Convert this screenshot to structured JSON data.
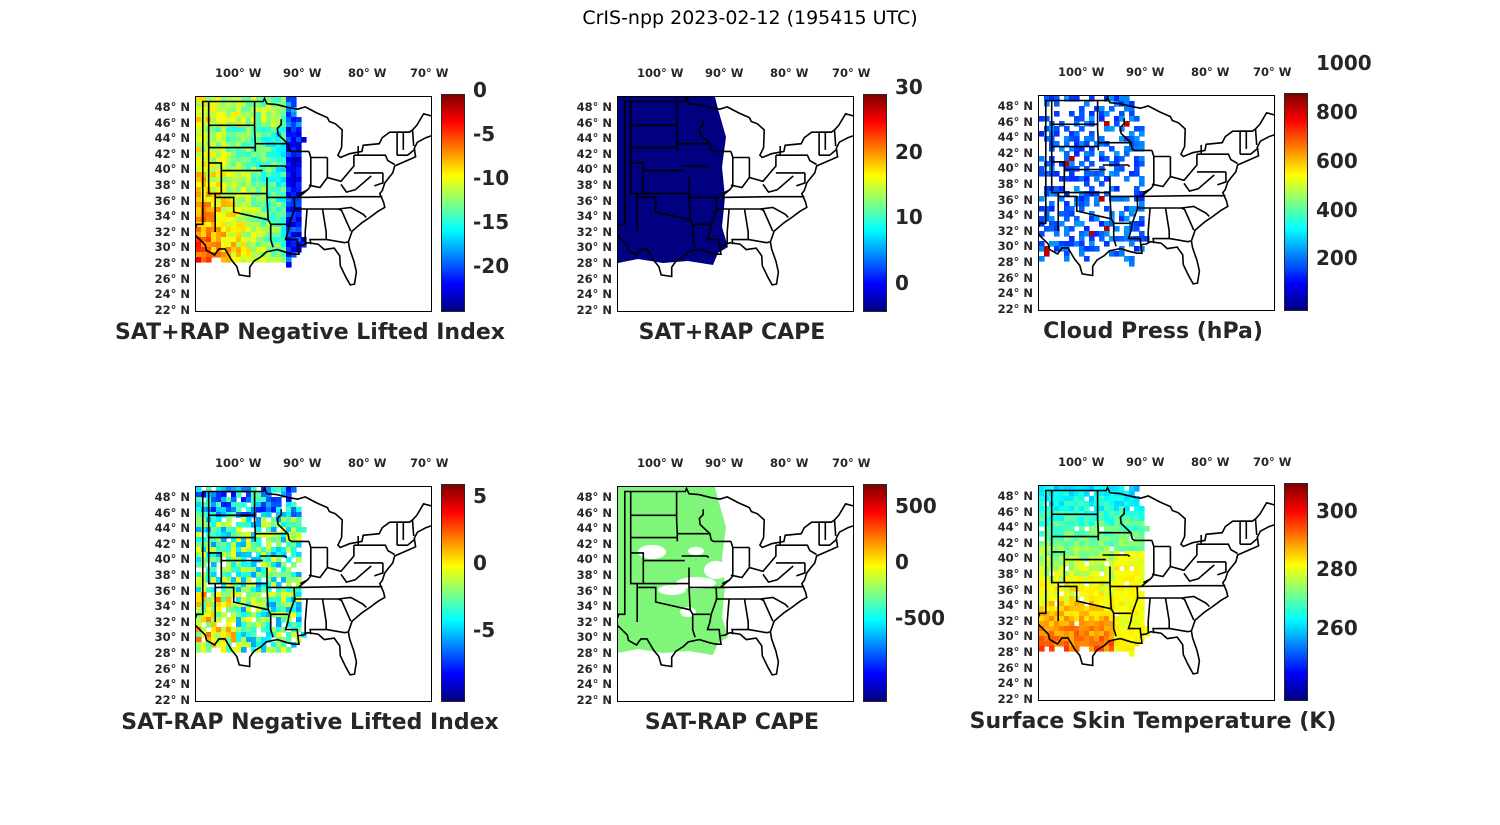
{
  "title": "CrIS-npp 2023-02-12 (195415 UTC)",
  "lat_labels": [
    "48° N",
    "46° N",
    "44° N",
    "42° N",
    "40° N",
    "38° N",
    "36° N",
    "34° N",
    "32° N",
    "30° N",
    "28° N",
    "26° N",
    "24° N",
    "22° N"
  ],
  "lon_labels": [
    "100° W",
    "90° W",
    "80° W",
    "70° W"
  ],
  "panels": [
    {
      "title": "SAT+RAP Negative Lifted Index",
      "colorbar_ticks": [
        "0",
        "-5",
        "-10",
        "-15",
        "-20"
      ],
      "colorbar_range": [
        -22,
        3
      ],
      "field": "nli_sum"
    },
    {
      "title": "SAT+RAP CAPE",
      "colorbar_ticks": [
        "30",
        "20",
        "10",
        "0"
      ],
      "colorbar_range": [
        0,
        33
      ],
      "field": "cape_sum"
    },
    {
      "title": "Cloud Press (hPa)",
      "colorbar_ticks": [
        "1000",
        "800",
        "600",
        "400",
        "200"
      ],
      "colorbar_range": [
        100,
        1050
      ],
      "field": "cloud_press"
    },
    {
      "title": "SAT-RAP Negative Lifted Index",
      "colorbar_ticks": [
        "5",
        "0",
        "-5"
      ],
      "colorbar_range": [
        -8,
        8
      ],
      "field": "nli_diff"
    },
    {
      "title": "SAT-RAP CAPE",
      "colorbar_ticks": [
        "500",
        "0",
        "-500"
      ],
      "colorbar_range": [
        -950,
        950
      ],
      "field": "cape_diff"
    },
    {
      "title": "Surface Skin Temperature (K)",
      "colorbar_ticks": [
        "300",
        "280",
        "260"
      ],
      "colorbar_range": [
        245,
        320
      ],
      "field": "skin_temp"
    }
  ],
  "colors": {
    "colormap": "jet",
    "background": "#ffffff",
    "coastline": "#000000"
  }
}
